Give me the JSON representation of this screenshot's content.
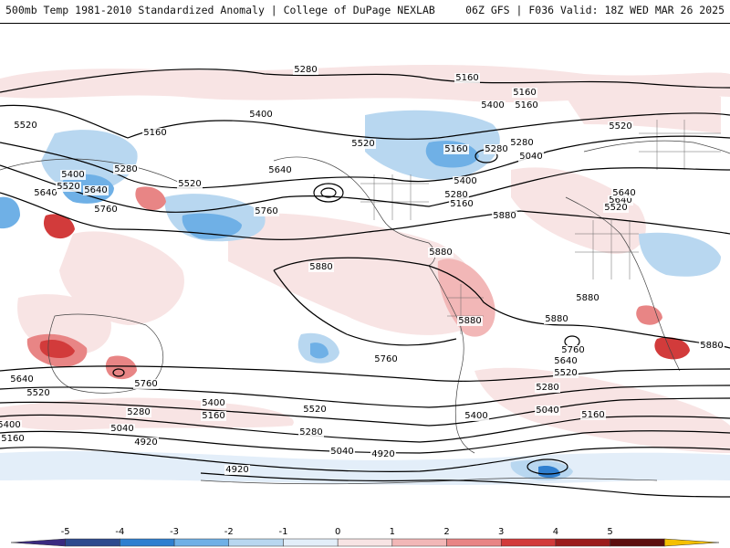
{
  "header": {
    "left_title": "500mb Temp 1981-2010 Standardized Anomaly | College of DuPage NEXLAB",
    "right_title": "06Z GFS | F036 Valid: 18Z WED MAR 26 2025"
  },
  "colors": {
    "ocean_bg": "#ffffff",
    "contour": "#000000",
    "coast": "#444444",
    "border": "#555555"
  },
  "legend": {
    "ticks": [
      "-5",
      "-4",
      "-3",
      "-2",
      "-1",
      "0",
      "1",
      "2",
      "3",
      "4",
      "5"
    ],
    "colors": [
      "#3a2a80",
      "#2c4a8e",
      "#2f7fd0",
      "#6fb0e6",
      "#b8d7f0",
      "#e3eef9",
      "#f8e4e4",
      "#f2b7b7",
      "#e88585",
      "#d23b3b",
      "#9b1c1c",
      "#5c0f0f",
      "#f5c000"
    ]
  },
  "contour_labels": [
    "5280",
    "5160",
    "5160",
    "5520",
    "5400",
    "5160",
    "5280",
    "5400",
    "5640",
    "5520",
    "5760",
    "5640",
    "5520",
    "5400",
    "5280",
    "5160",
    "5160",
    "5280",
    "5520",
    "5640",
    "5880",
    "5880",
    "5880",
    "5880",
    "5880",
    "5760",
    "5760",
    "5640",
    "5520",
    "5400",
    "5280",
    "5160",
    "5040",
    "4920",
    "4920",
    "5640",
    "5520",
    "5400",
    "5160",
    "5400",
    "5160",
    "5280",
    "5040",
    "4920",
    "5520",
    "5400",
    "5280",
    "5040",
    "5160",
    "5760",
    "5880",
    "5880",
    "5280",
    "5040",
    "5640",
    "5520",
    "5760",
    "5640",
    "5520"
  ]
}
